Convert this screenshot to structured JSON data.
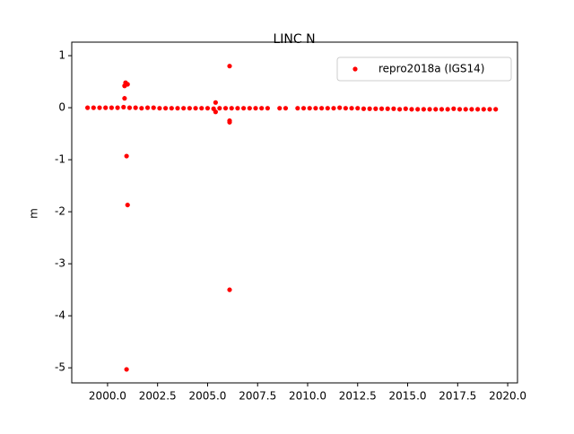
{
  "chart_data": {
    "type": "scatter",
    "title": "LINC N",
    "y_label": "m",
    "x": [
      1999.0,
      1999.3,
      1999.6,
      1999.9,
      2000.2,
      2000.5,
      2000.8,
      2001.1,
      2001.4,
      2001.7,
      2002.0,
      2002.3,
      2002.6,
      2002.9,
      2003.2,
      2003.5,
      2003.8,
      2004.1,
      2004.4,
      2004.7,
      2005.0,
      2005.3,
      2005.6,
      2005.9,
      2006.2,
      2006.5,
      2006.8,
      2007.1,
      2007.4,
      2007.7,
      2008.0,
      2008.6,
      2008.9,
      2009.5,
      2009.8,
      2010.1,
      2010.4,
      2010.7,
      2011.0,
      2011.3,
      2011.6,
      2011.9,
      2012.2,
      2012.5,
      2012.8,
      2013.1,
      2013.4,
      2013.7,
      2014.0,
      2014.3,
      2014.6,
      2014.9,
      2015.2,
      2015.5,
      2015.8,
      2016.1,
      2016.4,
      2016.7,
      2017.0,
      2017.3,
      2017.6,
      2017.9,
      2018.2,
      2018.5,
      2018.8,
      2019.1,
      2019.4,
      2000.9,
      2001.0,
      2000.85,
      2000.85,
      2000.95,
      2001.0,
      2000.95,
      2005.4,
      2005.4,
      2006.1,
      2006.1,
      2006.1,
      2006.1
    ],
    "series": [
      {
        "name": "repro2018a (IGS14)",
        "color": "#ff0000",
        "values": [
          0,
          0,
          0,
          0,
          0,
          0,
          0.01,
          0,
          0,
          -0.01,
          0,
          0,
          -0.01,
          -0.01,
          -0.01,
          -0.01,
          -0.01,
          -0.01,
          -0.01,
          -0.01,
          -0.01,
          -0.02,
          -0.01,
          -0.01,
          -0.01,
          -0.01,
          -0.01,
          -0.01,
          -0.01,
          -0.01,
          -0.01,
          -0.01,
          -0.01,
          -0.01,
          -0.01,
          -0.01,
          -0.01,
          -0.01,
          -0.01,
          -0.01,
          0,
          -0.01,
          -0.01,
          -0.01,
          -0.02,
          -0.02,
          -0.02,
          -0.02,
          -0.02,
          -0.02,
          -0.03,
          -0.02,
          -0.03,
          -0.03,
          -0.03,
          -0.03,
          -0.03,
          -0.03,
          -0.03,
          -0.02,
          -0.03,
          -0.03,
          -0.03,
          -0.03,
          -0.03,
          -0.03,
          -0.03,
          0.48,
          0.45,
          0.42,
          0.18,
          -0.93,
          -1.87,
          -5.03,
          0.1,
          -0.08,
          0.8,
          -0.25,
          -0.28,
          -3.5
        ]
      }
    ],
    "xlim": [
      1998.21,
      2020.49
    ],
    "ylim": [
      -5.29,
      1.26
    ],
    "xticks": [
      {
        "value": 2000,
        "label": "2000.0"
      },
      2002.5,
      {
        "value": 2005,
        "label": "2005.0"
      },
      2007.5,
      {
        "value": 2010,
        "label": "2010.0"
      },
      2012.5,
      {
        "value": 2015,
        "label": "2015.0"
      },
      2017.5,
      {
        "value": 2020,
        "label": "2020.0"
      }
    ],
    "yticks": [
      1,
      0,
      -1,
      -2,
      -3,
      -4,
      -5
    ],
    "legend": "upper right"
  }
}
